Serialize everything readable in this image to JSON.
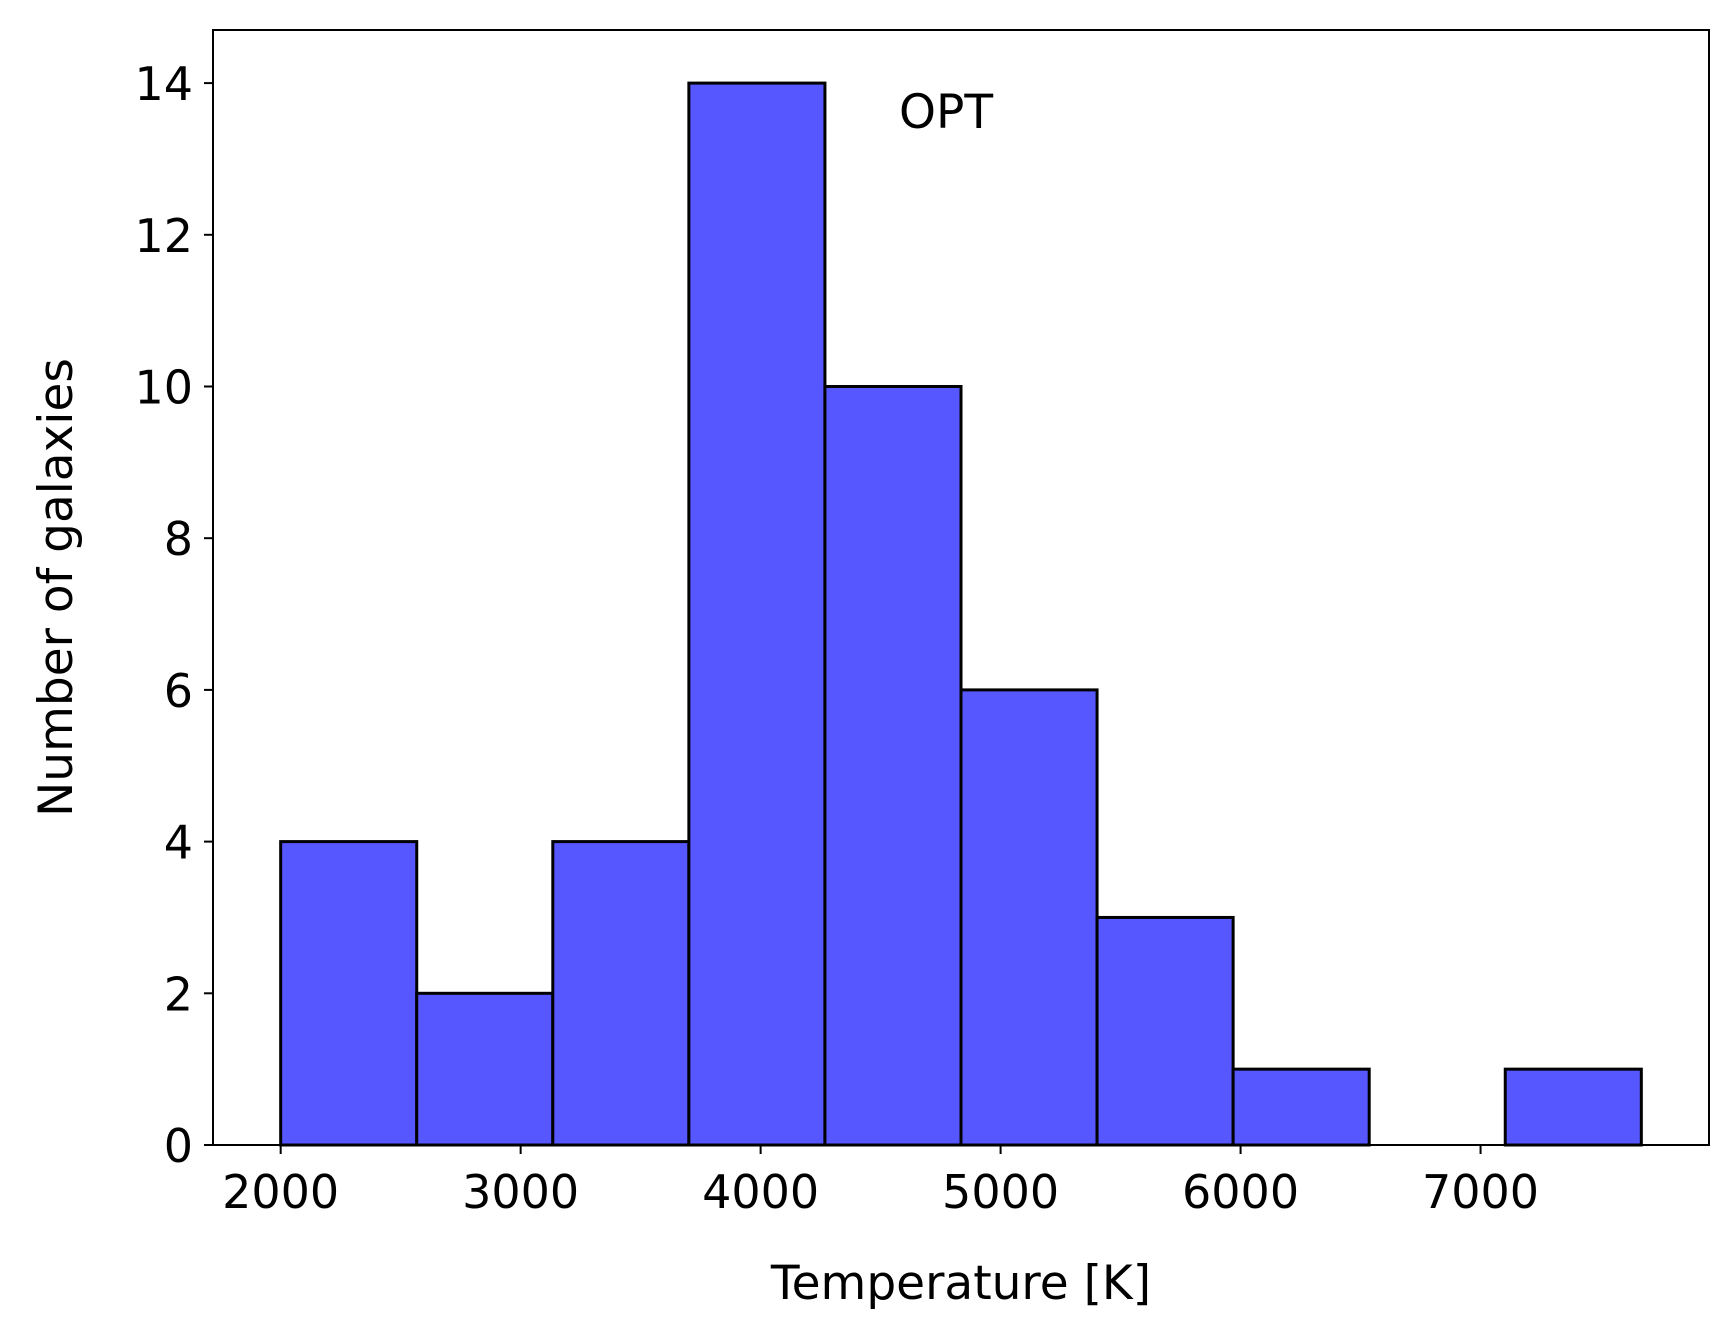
{
  "chart_data": {
    "type": "bar",
    "variant": "histogram",
    "bin_edges": [
      2000,
      2567,
      3134,
      3701,
      4268,
      4835,
      5402,
      5969,
      6536,
      7103,
      7670
    ],
    "values": [
      4,
      2,
      4,
      14,
      10,
      6,
      3,
      1,
      0,
      1
    ],
    "xlabel": "Temperature [K]",
    "ylabel": "Number of galaxies",
    "annotation": "OPT",
    "xlim": [
      1718,
      7952
    ],
    "ylim": [
      0,
      14.7
    ],
    "xticks": [
      2000,
      3000,
      4000,
      5000,
      6000,
      7000
    ],
    "yticks": [
      0,
      2,
      4,
      6,
      8,
      10,
      12,
      14
    ],
    "bar_color": "#5757ff",
    "edge_color": "#000000",
    "grid": false,
    "legend": "none"
  }
}
